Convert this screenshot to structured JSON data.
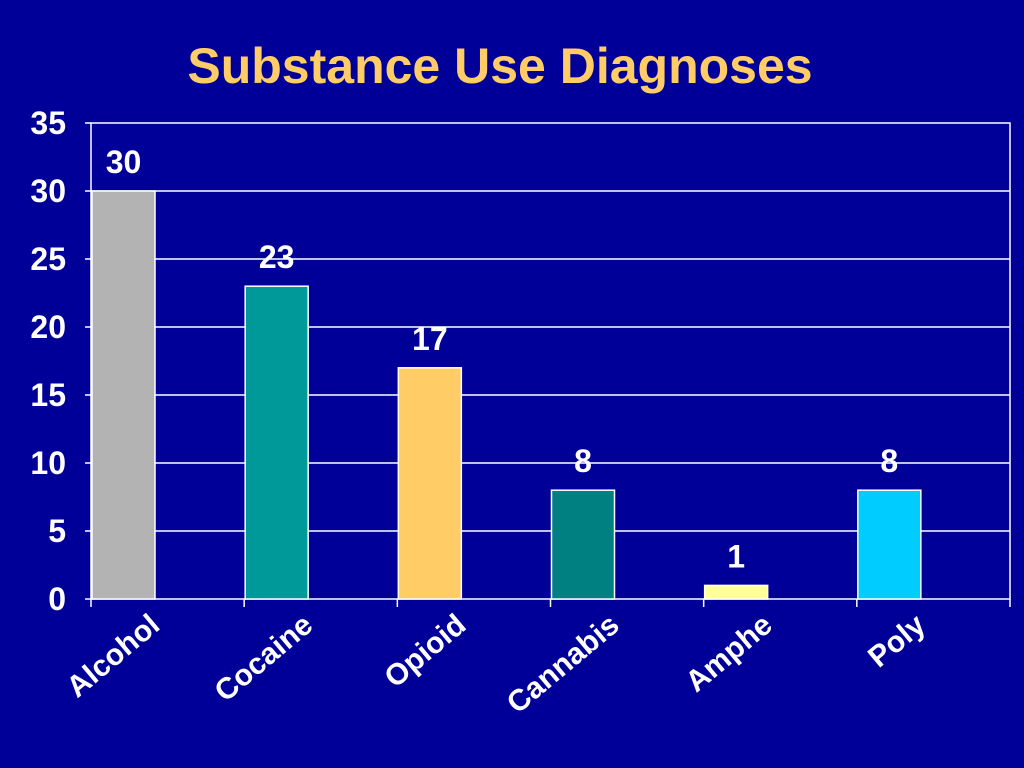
{
  "chart_data": {
    "type": "bar",
    "title": "Substance Use Diagnoses",
    "xlabel": "",
    "ylabel": "",
    "categories": [
      "Alcohol",
      "Cocaine",
      "Opioid",
      "Cannabis",
      "Amphe",
      "Poly"
    ],
    "values": [
      30,
      23,
      17,
      8,
      1,
      8
    ],
    "data_labels": [
      "30",
      "23",
      "17",
      "8",
      "1",
      "8"
    ],
    "bar_colors": [
      "#B3B3B3",
      "#009999",
      "#FFCC66",
      "#008080",
      "#FFFF99",
      "#00CCFF"
    ],
    "ylim": [
      0,
      35
    ],
    "yticks": [
      0,
      5,
      10,
      15,
      20,
      25,
      30,
      35
    ],
    "grid": true,
    "legend": "none"
  },
  "colors": {
    "background": "#000099",
    "title": "#FFCC66",
    "text": "#FFFFFF",
    "grid": "#FFFFFF"
  }
}
